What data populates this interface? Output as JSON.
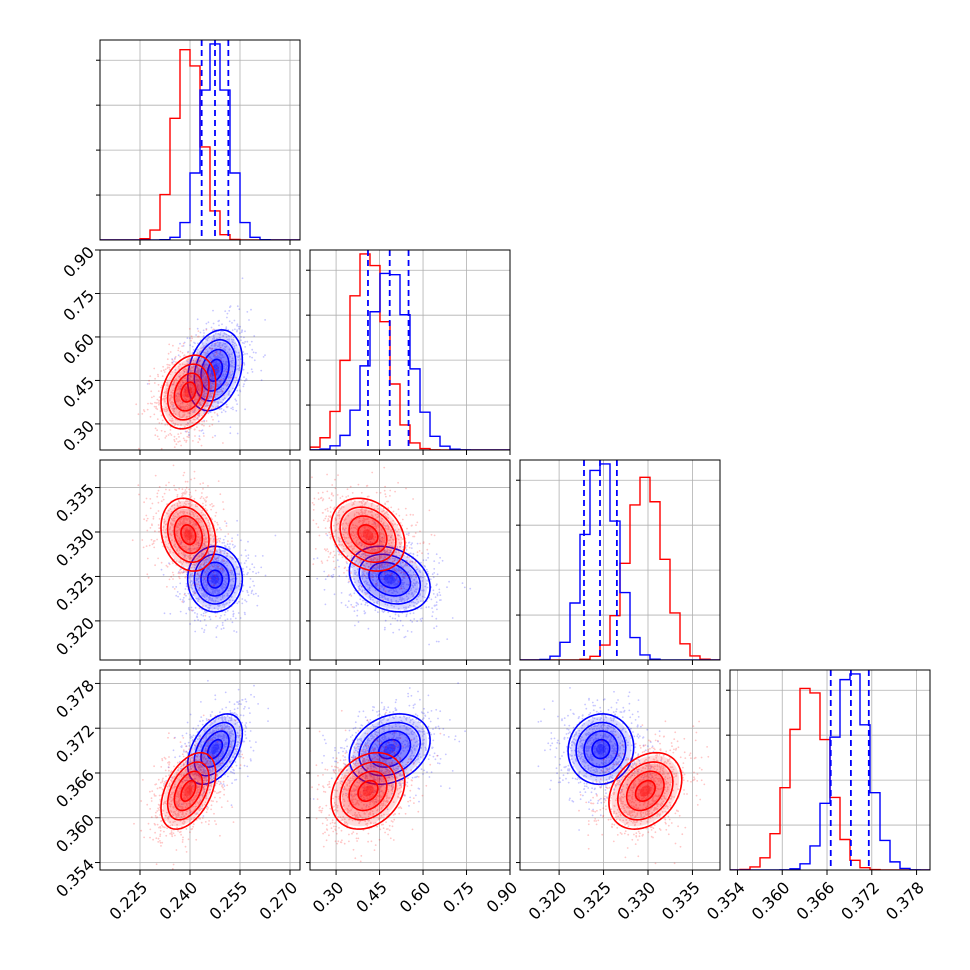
{
  "chart_data": {
    "type": "corner",
    "parameters": [
      {
        "range": [
          0.213,
          0.273
        ],
        "ticks": [
          0.225,
          0.24,
          0.255,
          0.27
        ],
        "tick_labels": [
          "0.225",
          "0.240",
          "0.255",
          "0.270"
        ]
      },
      {
        "range": [
          0.21,
          0.9
        ],
        "ticks": [
          0.3,
          0.45,
          0.6,
          0.75,
          0.9
        ],
        "tick_labels": [
          "0.30",
          "0.45",
          "0.60",
          "0.75",
          "0.90"
        ]
      },
      {
        "range": [
          0.3156,
          0.3381
        ],
        "ticks": [
          0.32,
          0.325,
          0.33,
          0.335
        ],
        "tick_labels": [
          "0.320",
          "0.325",
          "0.330",
          "0.335"
        ]
      },
      {
        "range": [
          0.353,
          0.3798
        ],
        "ticks": [
          0.354,
          0.36,
          0.366,
          0.372,
          0.378
        ],
        "tick_labels": [
          "0.354",
          "0.360",
          "0.366",
          "0.372",
          "0.378"
        ]
      }
    ],
    "series": [
      {
        "color": "#0000ff",
        "mean": [
          0.2475,
          0.485,
          0.3247,
          0.3692
        ],
        "sd": [
          0.004,
          0.068,
          0.0018,
          0.0023
        ],
        "correlations": {
          "0-1": 0.25,
          "0-2": 0.0,
          "1-2": -0.25,
          "0-3": 0.45,
          "1-3": 0.25,
          "2-3": 0.05
        },
        "quantiles": [
          [
            0.2435,
            0.2475,
            0.2515
          ],
          [
            0.41,
            0.485,
            0.55
          ],
          [
            0.3228,
            0.3246,
            0.3265
          ],
          [
            0.3665,
            0.3692,
            0.3716
          ]
        ]
      },
      {
        "color": "#ff0000",
        "mean": [
          0.2395,
          0.41,
          0.3297,
          0.3636
        ],
        "sd": [
          0.004,
          0.062,
          0.002,
          0.0025
        ],
        "correlations": {
          "0-1": 0.25,
          "0-2": -0.2,
          "1-2": -0.25,
          "0-3": 0.45,
          "1-3": 0.25,
          "2-3": 0.3
        }
      }
    ]
  }
}
